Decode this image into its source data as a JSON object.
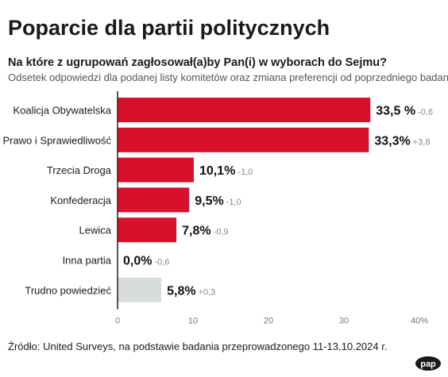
{
  "header": {
    "title": "Poparcie dla partii politycznych",
    "question": "Na które z ugrupowań zagłosował(a)by Pan(i) w wyborach do Sejmu?",
    "subtitle": "Odsetek odpowiedzi dla podanej listy komitetów oraz zmiana preferencji od poprzedniego badania."
  },
  "source": "Źródło: United Surveys, na podstawie badania przeprowadzonego 11-13.10.2024 r.",
  "logo": {
    "text": "pap"
  },
  "colors": {
    "bar": "#d8102b",
    "bar_muted": "#d9dcdc",
    "axis": "#222222",
    "tick": "#777777",
    "change": "#888888",
    "grid": "#d5d5d5"
  },
  "chart_data": {
    "type": "bar",
    "orientation": "horizontal",
    "categories": [
      "Koalicja Obywatelska",
      "Prawo i Sprawiedliwość",
      "Trzecia Droga",
      "Konfederacja",
      "Lewica",
      "Inna partia",
      "Trudno powiedzieć"
    ],
    "values": [
      33.5,
      33.3,
      10.1,
      9.5,
      7.8,
      0.0,
      5.8
    ],
    "value_labels": [
      "33,5 %",
      "33,3%",
      "10,1%",
      "9,5%",
      "7,8%",
      "0,0%",
      "5,8%"
    ],
    "change_labels": [
      "-0,6",
      "+3,8",
      "-1,0",
      "-1,0",
      "-0,9",
      "-0,6",
      "+0,3"
    ],
    "muted": [
      false,
      false,
      false,
      false,
      false,
      false,
      true
    ],
    "xlim": [
      0,
      40
    ],
    "xticks": [
      0,
      10,
      20,
      30,
      40
    ],
    "xtick_labels": [
      "0",
      "10",
      "20",
      "30",
      "40%"
    ],
    "grid": false
  }
}
